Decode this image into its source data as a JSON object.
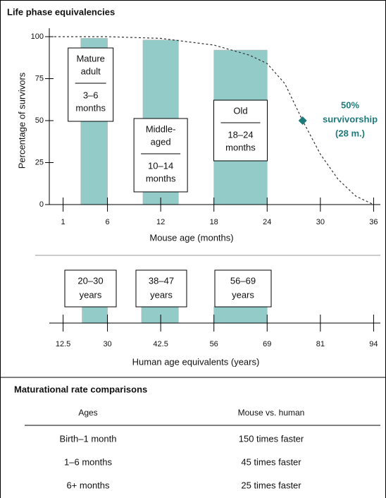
{
  "title": "Life phase equivalencies",
  "chart_data": {
    "type": "bar",
    "ylabel": "Percentage of survivors",
    "xlabel": "Mouse age (months)",
    "ylim": [
      0,
      100
    ],
    "yticks": [
      0,
      25,
      50,
      75,
      100
    ],
    "xlim": [
      0,
      37
    ],
    "xticks": [
      1,
      6,
      12,
      18,
      24,
      30,
      36
    ],
    "color": "#93cbc8",
    "survival": {
      "x": [
        0,
        6,
        12,
        18,
        22,
        24,
        26,
        28,
        30,
        32,
        34,
        36
      ],
      "values": [
        100,
        100,
        99,
        95,
        89,
        84,
        72,
        50,
        30,
        15,
        5,
        0
      ]
    },
    "phases": [
      {
        "name_lines": [
          "Mature",
          "adult"
        ],
        "range_lines": [
          "3–6",
          "months"
        ],
        "start": 3,
        "end": 6,
        "value": 99
      },
      {
        "name_lines": [
          "Middle-",
          "aged"
        ],
        "range_lines": [
          "10–14",
          "months"
        ],
        "start": 10,
        "end": 14,
        "value": 98
      },
      {
        "name_lines": [
          "Old"
        ],
        "range_lines": [
          "18–24",
          "months"
        ],
        "start": 18,
        "end": 24,
        "value": 92
      }
    ],
    "annotation": {
      "x": 28,
      "y": 50,
      "color": "#1e7a78",
      "lines": [
        "50%",
        "survivorship",
        "(28 m.)"
      ]
    },
    "human_xlabel": "Human age equivalents (years)",
    "human_xticks": [
      12.5,
      30,
      42.5,
      56,
      69,
      81,
      94
    ],
    "human_phases": [
      {
        "lines": [
          "20–30",
          "years"
        ],
        "start": 20,
        "end": 30
      },
      {
        "lines": [
          "38–47",
          "years"
        ],
        "start": 38,
        "end": 47
      },
      {
        "lines": [
          "56–69",
          "years"
        ],
        "start": 56,
        "end": 69
      }
    ]
  },
  "table": {
    "title": "Maturational rate comparisons",
    "columns": [
      "Ages",
      "Mouse vs. human"
    ],
    "rows": [
      [
        "Birth–1 month",
        "150 times faster"
      ],
      [
        "1–6 months",
        "45 times faster"
      ],
      [
        "6+ months",
        "25 times faster"
      ]
    ]
  }
}
